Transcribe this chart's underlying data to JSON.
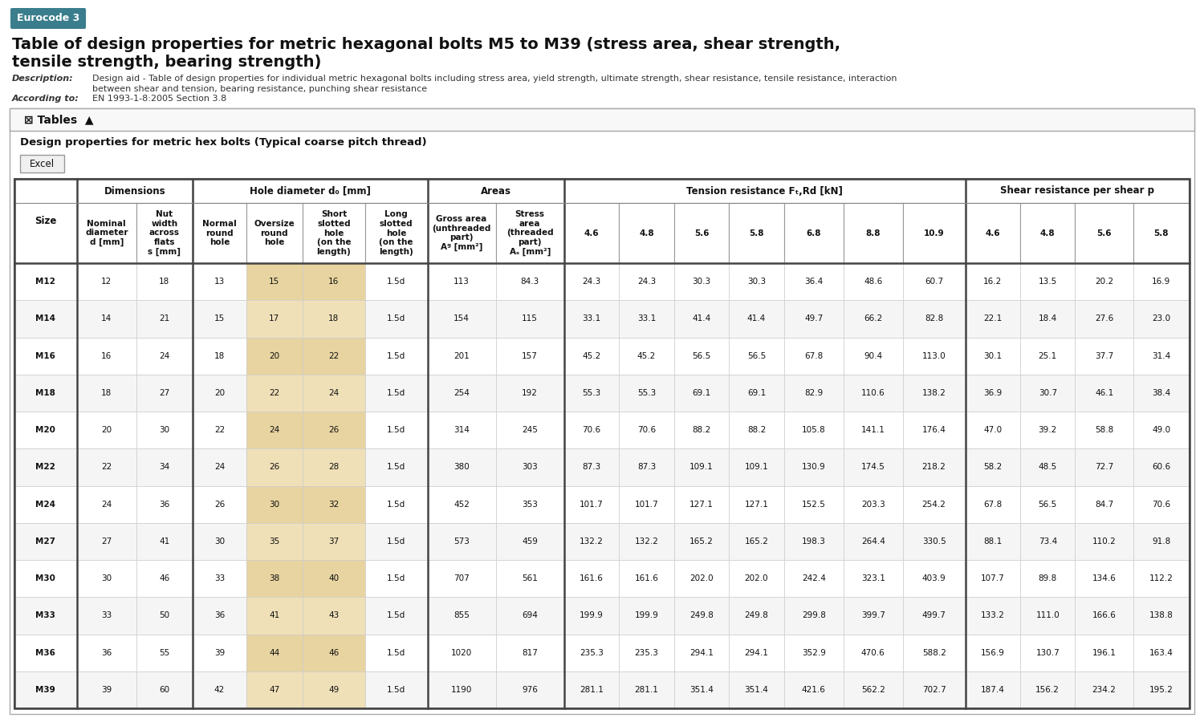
{
  "title_line1": "Table of design properties for metric hexagonal bolts M5 to M39 (stress area, shear strength,",
  "title_line2": "tensile strength, bearing strength)",
  "tag": "Eurocode 3",
  "tag_color": "#3a7d8c",
  "description_label": "Description:",
  "description_text": "Design aid - Table of design properties for individual metric hexagonal bolts including stress area, yield strength, ultimate strength, shear resistance, tensile resistance, interaction\nbetween shear and tension, bearing resistance, punching shear resistance",
  "according_label": "According to:",
  "according_text": "EN 1993-1-8:2005 Section 3.8",
  "subtitle": "Design properties for metric hex bolts (Typical coarse pitch thread)",
  "rows": [
    [
      "M12",
      12,
      18,
      13,
      15,
      16,
      "1.5d",
      113,
      84.3,
      24.3,
      24.3,
      30.3,
      30.3,
      36.4,
      48.6,
      60.7,
      16.2,
      13.5,
      20.2,
      16.9
    ],
    [
      "M14",
      14,
      21,
      15,
      17,
      18,
      "1.5d",
      154,
      115,
      33.1,
      33.1,
      41.4,
      41.4,
      49.7,
      66.2,
      82.8,
      22.1,
      18.4,
      27.6,
      23.0
    ],
    [
      "M16",
      16,
      24,
      18,
      20,
      22,
      "1.5d",
      201,
      157,
      45.2,
      45.2,
      56.5,
      56.5,
      67.8,
      90.4,
      113.0,
      30.1,
      25.1,
      37.7,
      31.4
    ],
    [
      "M18",
      18,
      27,
      20,
      22,
      24,
      "1.5d",
      254,
      192,
      55.3,
      55.3,
      69.1,
      69.1,
      82.9,
      110.6,
      138.2,
      36.9,
      30.7,
      46.1,
      38.4
    ],
    [
      "M20",
      20,
      30,
      22,
      24,
      26,
      "1.5d",
      314,
      245,
      70.6,
      70.6,
      88.2,
      88.2,
      105.8,
      141.1,
      176.4,
      47.0,
      39.2,
      58.8,
      49.0
    ],
    [
      "M22",
      22,
      34,
      24,
      26,
      28,
      "1.5d",
      380,
      303,
      87.3,
      87.3,
      109.1,
      109.1,
      130.9,
      174.5,
      218.2,
      58.2,
      48.5,
      72.7,
      60.6
    ],
    [
      "M24",
      24,
      36,
      26,
      30,
      32,
      "1.5d",
      452,
      353,
      101.7,
      101.7,
      127.1,
      127.1,
      152.5,
      203.3,
      254.2,
      67.8,
      56.5,
      84.7,
      70.6
    ],
    [
      "M27",
      27,
      41,
      30,
      35,
      37,
      "1.5d",
      573,
      459,
      132.2,
      132.2,
      165.2,
      165.2,
      198.3,
      264.4,
      330.5,
      88.1,
      73.4,
      110.2,
      91.8
    ],
    [
      "M30",
      30,
      46,
      33,
      38,
      40,
      "1.5d",
      707,
      561,
      161.6,
      161.6,
      202.0,
      202.0,
      242.4,
      323.1,
      403.9,
      107.7,
      89.8,
      134.6,
      112.2
    ],
    [
      "M33",
      33,
      50,
      36,
      41,
      43,
      "1.5d",
      855,
      694,
      199.9,
      199.9,
      249.8,
      249.8,
      299.8,
      399.7,
      499.7,
      133.2,
      111.0,
      166.6,
      138.8
    ],
    [
      "M36",
      36,
      55,
      39,
      44,
      46,
      "1.5d",
      1020,
      817,
      235.3,
      235.3,
      294.1,
      294.1,
      352.9,
      470.6,
      588.2,
      156.9,
      130.7,
      196.1,
      163.4
    ],
    [
      "M39",
      39,
      60,
      42,
      47,
      49,
      "1.5d",
      1190,
      976,
      281.1,
      281.1,
      351.4,
      351.4,
      421.6,
      562.2,
      702.7,
      187.4,
      156.2,
      234.2,
      195.2
    ]
  ],
  "bg_color": "#ffffff",
  "alt_row_bg": "#f5f5f5",
  "highlight_col_bg": "#e8d4a0",
  "highlight_val_bg": "#f0e0b8"
}
